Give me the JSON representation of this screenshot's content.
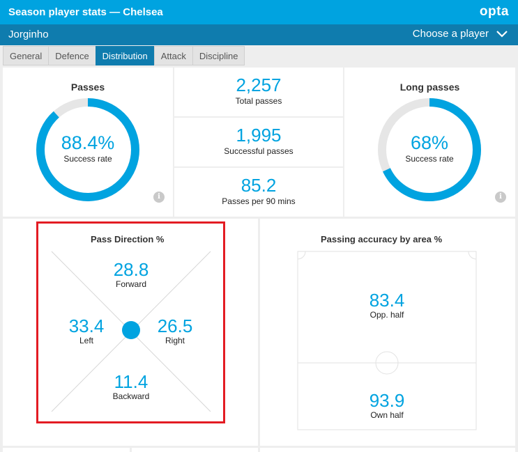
{
  "header": {
    "title": "Season player stats — Chelsea",
    "logo": "opta"
  },
  "subbar": {
    "player": "Jorginho",
    "chooser": "Choose a player",
    "chooser_icon": "chevron-down-icon"
  },
  "tabs": [
    {
      "label": "General",
      "active": false
    },
    {
      "label": "Defence",
      "active": false
    },
    {
      "label": "Distribution",
      "active": true
    },
    {
      "label": "Attack",
      "active": false
    },
    {
      "label": "Discipline",
      "active": false
    }
  ],
  "passes": {
    "title": "Passes",
    "value": "88.4%",
    "label": "Success rate",
    "fraction": 0.884,
    "info": "i"
  },
  "stats": [
    {
      "value": "2,257",
      "label": "Total passes"
    },
    {
      "value": "1,995",
      "label": "Successful passes"
    },
    {
      "value": "85.2",
      "label": "Passes per 90 mins"
    }
  ],
  "long_passes": {
    "title": "Long passes",
    "value": "68%",
    "label": "Success rate",
    "fraction": 0.68,
    "info": "i"
  },
  "pass_direction": {
    "title": "Pass Direction %",
    "forward": {
      "value": "28.8",
      "label": "Forward"
    },
    "left": {
      "value": "33.4",
      "label": "Left"
    },
    "right": {
      "value": "26.5",
      "label": "Right"
    },
    "backward": {
      "value": "11.4",
      "label": "Backward"
    }
  },
  "accuracy_by_area": {
    "title": "Passing accuracy by area %",
    "opp_half": {
      "value": "83.4",
      "label": "Opp. half"
    },
    "own_half": {
      "value": "93.9",
      "label": "Own half"
    }
  },
  "colors": {
    "accent": "#00a3e0",
    "header_dark": "#0f7cae",
    "track": "#e6e6e6",
    "highlight": "#e31c23"
  }
}
